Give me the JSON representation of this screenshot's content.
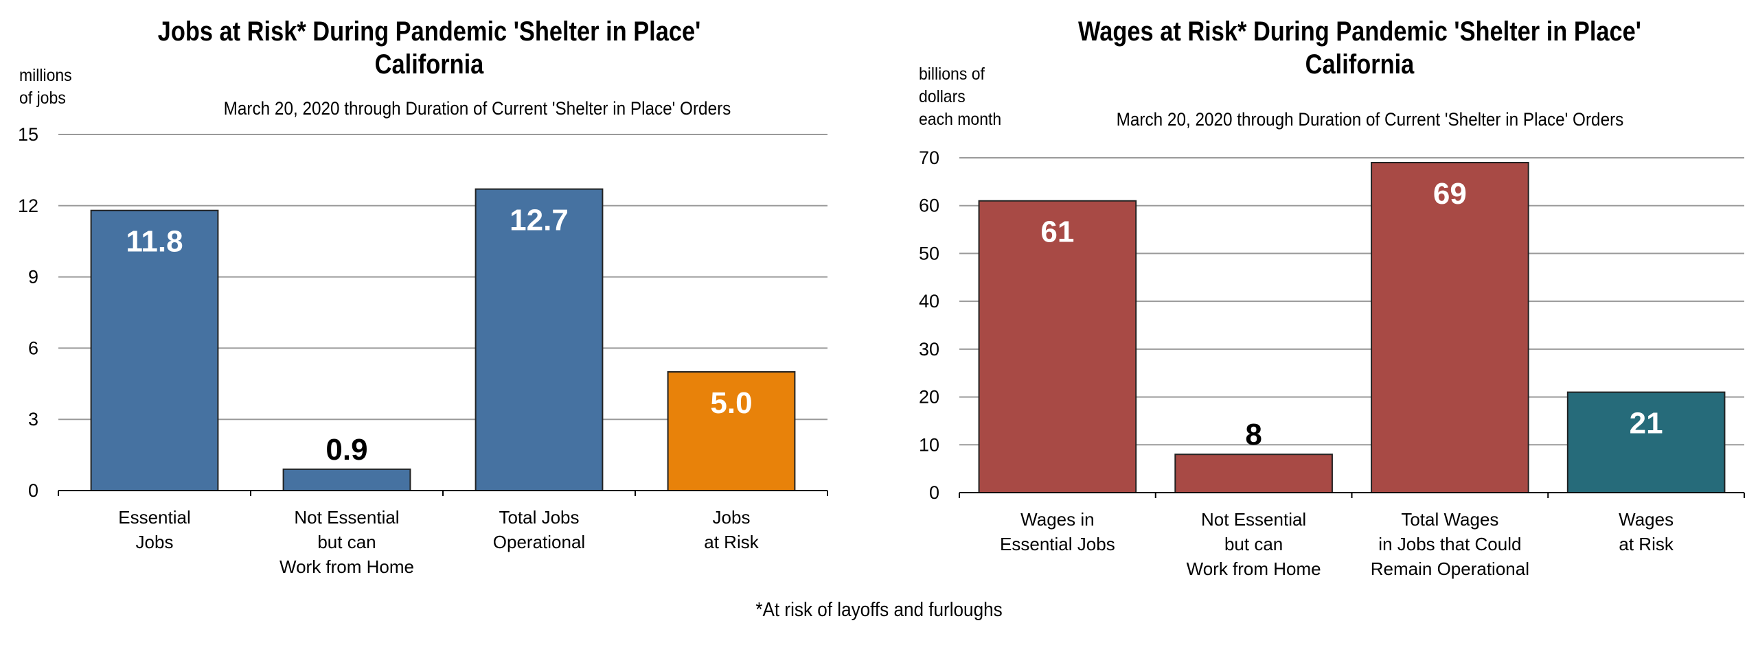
{
  "footnote": "*At risk of layoffs and furloughs",
  "chart_data": [
    {
      "type": "bar",
      "title_line1": "Jobs at Risk* During Pandemic 'Shelter in Place'",
      "title_line2": "California",
      "subtitle": "March 20, 2020 through Duration of Current 'Shelter in Place' Orders",
      "ylabel_lines": [
        "millions",
        "of jobs"
      ],
      "ylim": [
        0,
        15
      ],
      "yticks": [
        0,
        3,
        6,
        9,
        12,
        15
      ],
      "grid": true,
      "categories": [
        [
          "Essential",
          "Jobs"
        ],
        [
          "Not Essential",
          "but can",
          "Work from Home"
        ],
        [
          "Total Jobs",
          "Operational"
        ],
        [
          "Jobs",
          "at Risk"
        ]
      ],
      "values": [
        11.8,
        0.9,
        12.7,
        5.0
      ],
      "labels": [
        "11.8",
        "0.9",
        "12.7",
        "5.0"
      ],
      "colors": [
        "#4672a1",
        "#4672a1",
        "#4672a1",
        "#e8820a"
      ],
      "label_inside": [
        true,
        false,
        true,
        true
      ]
    },
    {
      "type": "bar",
      "title_line1": "Wages at Risk* During Pandemic 'Shelter in Place'",
      "title_line2": "California",
      "subtitle": "March 20, 2020 through Duration of Current 'Shelter in Place' Orders",
      "ylabel_lines": [
        "billions of",
        "dollars",
        "each month"
      ],
      "ylim": [
        0,
        70
      ],
      "yticks": [
        0,
        10,
        20,
        30,
        40,
        50,
        60,
        70
      ],
      "grid": true,
      "categories": [
        [
          "Wages in",
          "Essential Jobs"
        ],
        [
          "Not Essential",
          "but can",
          "Work from Home"
        ],
        [
          "Total Wages",
          "in Jobs that Could",
          "Remain Operational"
        ],
        [
          "Wages",
          "at Risk"
        ]
      ],
      "values": [
        61,
        8,
        69,
        21
      ],
      "labels": [
        "61",
        "8",
        "69",
        "21"
      ],
      "colors": [
        "#a84a45",
        "#a84a45",
        "#a84a45",
        "#266b7a"
      ],
      "label_inside": [
        true,
        false,
        true,
        true
      ]
    }
  ]
}
